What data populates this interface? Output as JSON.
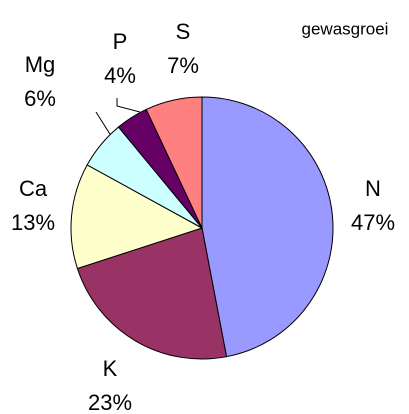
{
  "chart_data": {
    "type": "pie",
    "title": "gewasgroei",
    "categories": [
      "N",
      "K",
      "Ca",
      "Mg",
      "P",
      "S"
    ],
    "values": [
      47,
      23,
      13,
      6,
      4,
      7
    ],
    "value_labels": [
      "47%",
      "23%",
      "13%",
      "6%",
      "4%",
      "7%"
    ],
    "colors": [
      "#9999ff",
      "#993366",
      "#ffffcc",
      "#ccffff",
      "#660066",
      "#ff8080"
    ]
  }
}
